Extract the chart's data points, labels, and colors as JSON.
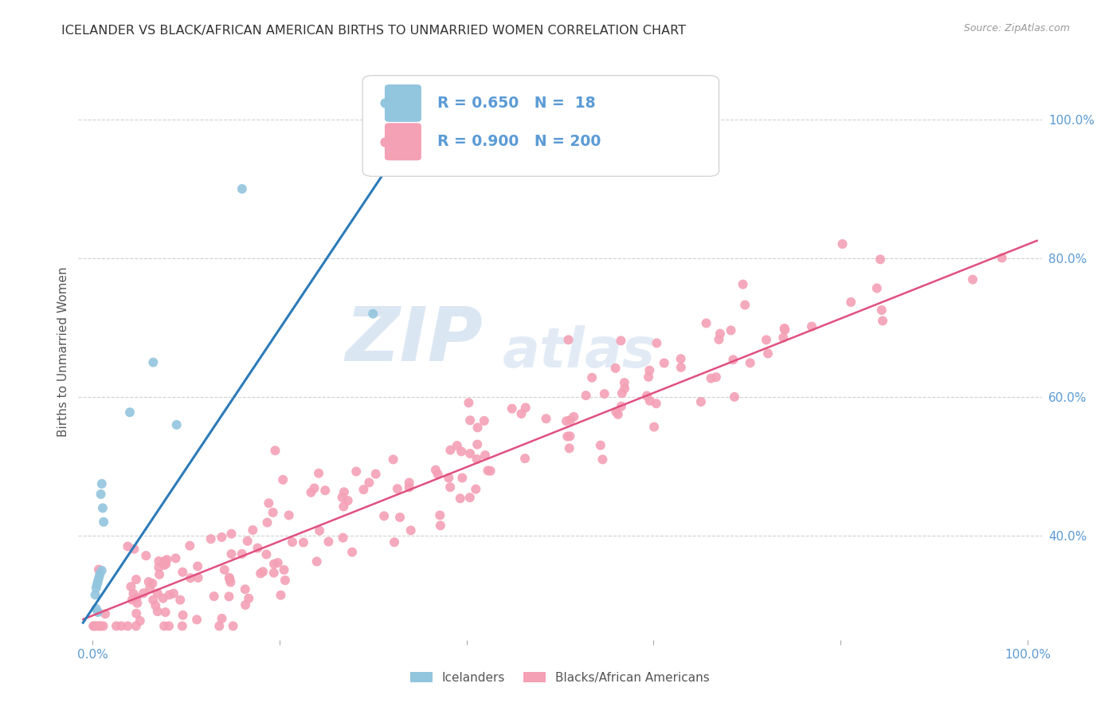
{
  "title": "ICELANDER VS BLACK/AFRICAN AMERICAN BIRTHS TO UNMARRIED WOMEN CORRELATION CHART",
  "source": "Source: ZipAtlas.com",
  "ylabel": "Births to Unmarried Women",
  "watermark_line1": "ZIP",
  "watermark_line2": "atlas",
  "legend_R1": "0.650",
  "legend_N1": " 18",
  "legend_R2": "0.900",
  "legend_N2": "200",
  "icelander_color": "#92c5de",
  "icelander_line_color": "#2b7bba",
  "black_color": "#f4a0b5",
  "black_line_color": "#e05080",
  "background_color": "#ffffff",
  "grid_color": "#d0d0d0",
  "title_color": "#333333",
  "axis_label_color": "#555555",
  "tick_label_color": "#5b9bd5",
  "source_color": "#999999",
  "legend_text_color": "#5b9bd5",
  "figsize": [
    14.06,
    8.92
  ],
  "dpi": 100,
  "xlim": [
    -0.015,
    1.015
  ],
  "ylim": [
    0.25,
    1.08
  ],
  "right_ytick_positions": [
    0.4,
    0.6,
    0.8,
    1.0
  ],
  "right_ytick_labels": [
    "40.0%",
    "60.0%",
    "80.0%",
    "100.0%"
  ]
}
